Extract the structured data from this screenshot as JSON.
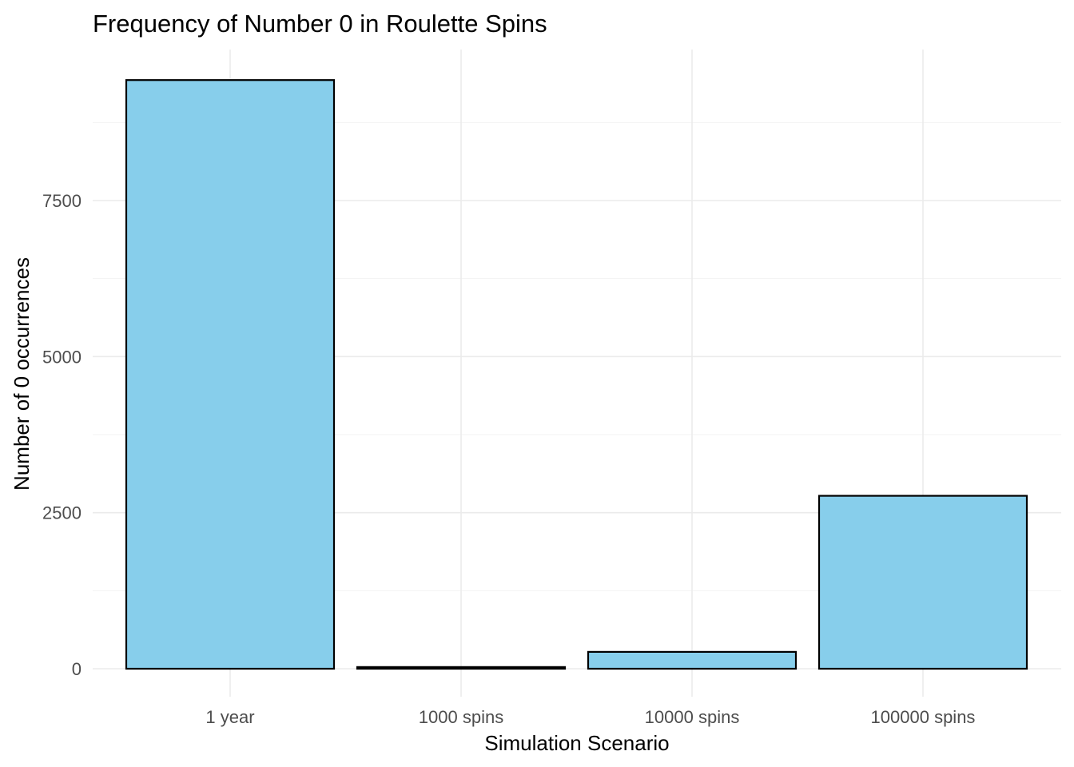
{
  "chart_data": {
    "type": "bar",
    "title": "Frequency of Number 0 in Roulette Spins",
    "xlabel": "Simulation Scenario",
    "ylabel": "Number of 0 occurrences",
    "categories": [
      "1 year",
      "1000 spins",
      "10000 spins",
      "100000 spins"
    ],
    "values": [
      9430,
      27,
      270,
      2770
    ],
    "yticks": [
      0,
      2500,
      5000,
      7500
    ],
    "ytick_labels": [
      "0",
      "2500",
      "5000",
      "7500"
    ],
    "ylim": [
      -480,
      9900
    ],
    "grid": true,
    "legend": "none",
    "colors": {
      "bar_fill": "#87ceeb",
      "bar_stroke": "#000000",
      "grid": "#ebebeb"
    }
  }
}
